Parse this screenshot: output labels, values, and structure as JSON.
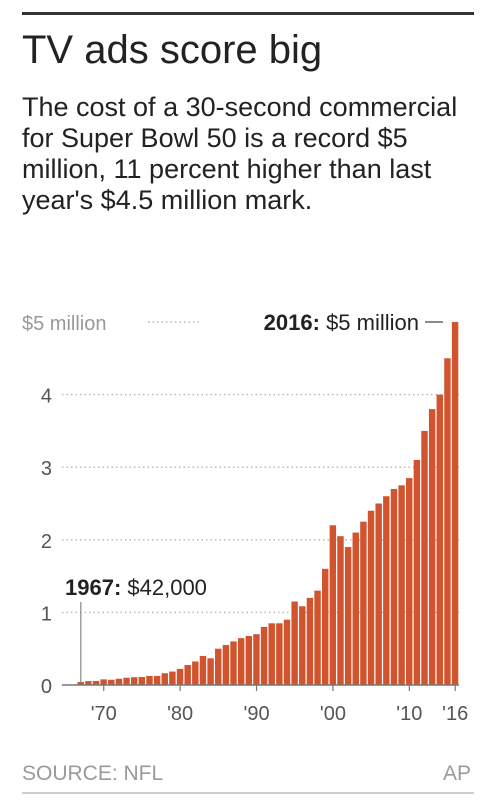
{
  "header": {
    "title": "TV ads score big",
    "subtitle": "The cost of a 30-second commercial for Super Bowl 50 is a record $5 million, 11 percent higher than last year's $4.5 million mark."
  },
  "footer": {
    "source": "SOURCE: NFL",
    "credit": "AP"
  },
  "colors": {
    "bar": "#d1542e",
    "grid": "#b5b5b5",
    "axis": "#777777",
    "text": "#222222",
    "muted": "#999999"
  },
  "chart_data": {
    "type": "bar",
    "ylim": [
      0,
      5
    ],
    "y_unit": "millions of dollars",
    "y_ticks": [
      {
        "value": 0,
        "label": "0"
      },
      {
        "value": 1,
        "label": "1"
      },
      {
        "value": 2,
        "label": "2"
      },
      {
        "value": 3,
        "label": "3"
      },
      {
        "value": 4,
        "label": "4"
      },
      {
        "value": 5,
        "label": "$5 million"
      }
    ],
    "x_ticks": [
      {
        "value": 1970,
        "label": "'70"
      },
      {
        "value": 1980,
        "label": "'80"
      },
      {
        "value": 1990,
        "label": "'90"
      },
      {
        "value": 2000,
        "label": "'00"
      },
      {
        "value": 2010,
        "label": "'10"
      },
      {
        "value": 2016,
        "label": "'16"
      }
    ],
    "x": [
      1967,
      1968,
      1969,
      1970,
      1971,
      1972,
      1973,
      1974,
      1975,
      1976,
      1977,
      1978,
      1979,
      1980,
      1981,
      1982,
      1983,
      1984,
      1985,
      1986,
      1987,
      1988,
      1989,
      1990,
      1991,
      1992,
      1993,
      1994,
      1995,
      1996,
      1997,
      1998,
      1999,
      2000,
      2001,
      2002,
      2003,
      2004,
      2005,
      2006,
      2007,
      2008,
      2009,
      2010,
      2011,
      2012,
      2013,
      2014,
      2015,
      2016
    ],
    "values": [
      0.042,
      0.054,
      0.055,
      0.078,
      0.072,
      0.086,
      0.1,
      0.107,
      0.11,
      0.125,
      0.125,
      0.162,
      0.185,
      0.222,
      0.275,
      0.324,
      0.4,
      0.368,
      0.5,
      0.55,
      0.6,
      0.645,
      0.675,
      0.7,
      0.8,
      0.85,
      0.85,
      0.9,
      1.15,
      1.085,
      1.2,
      1.3,
      1.6,
      2.2,
      2.05,
      1.9,
      2.1,
      2.25,
      2.4,
      2.5,
      2.6,
      2.7,
      2.75,
      2.85,
      3.1,
      3.5,
      3.8,
      4.0,
      4.5,
      5.0
    ],
    "annotations": [
      {
        "year": 1967,
        "label_bold": "1967:",
        "label_rest": " $42,000"
      },
      {
        "year": 2016,
        "label_bold": "2016:",
        "label_rest": " $5 million"
      }
    ]
  }
}
